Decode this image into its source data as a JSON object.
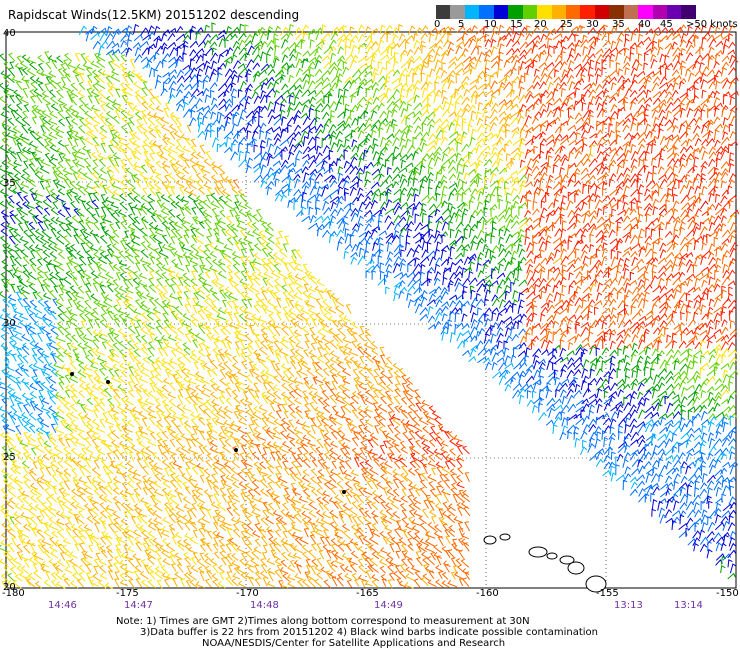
{
  "title": "Rapidscat Winds(12.5KM) 20151202 descending",
  "legend": {
    "colors": [
      "#3c3c3c",
      "#9a9a9a",
      "#00b4ff",
      "#0070ff",
      "#0000d8",
      "#00a000",
      "#60d000",
      "#ffe000",
      "#ffb000",
      "#ff6a00",
      "#ff2000",
      "#d00000",
      "#8a3000",
      "#c07050",
      "#ff00ff",
      "#b000b0",
      "#6a00b0",
      "#400070"
    ],
    "labels": [
      "0",
      "5",
      "10",
      "15",
      "20",
      "25",
      "30",
      "35",
      "40",
      "45",
      ">50 knots"
    ],
    "units": "knots"
  },
  "axes": {
    "lon_labels": [
      "-180",
      "-175",
      "-170",
      "-165",
      "-160",
      "-155",
      "-150"
    ],
    "lat_labels": [
      "40",
      "35",
      "30",
      "25",
      "20"
    ]
  },
  "times": [
    "14:46",
    "14:47",
    "14:48",
    "14:49",
    "13:13",
    "13:14"
  ],
  "notes": {
    "line1": "Note: 1) Times are GMT 2)Times along bottom correspond to measurement at 30N",
    "line2": "3)Data buffer is 22 hrs from 20151202 4) Black wind barbs indicate possible contamination",
    "line3": "NOAA/NESDIS/Center for Satellite Applications and Research"
  }
}
